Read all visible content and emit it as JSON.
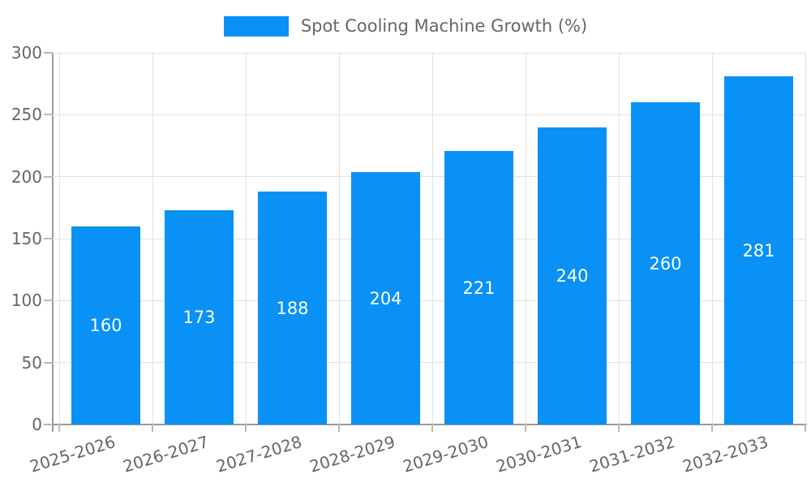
{
  "legend": {
    "label": "Spot Cooling Machine Growth (%)"
  },
  "chart_data": {
    "type": "bar",
    "title": "Spot Cooling Machine Growth (%)",
    "categories": [
      "2025-2026",
      "2026-2027",
      "2027-2028",
      "2028-2029",
      "2029-2030",
      "2030-2031",
      "2031-2032",
      "2032-2033"
    ],
    "values": [
      160,
      173,
      188,
      204,
      221,
      240,
      260,
      281
    ],
    "xlabel": "",
    "ylabel": "",
    "ylim": [
      0,
      300
    ],
    "yticks": [
      0,
      50,
      100,
      150,
      200,
      250,
      300
    ],
    "grid": true,
    "legend_position": "top-center",
    "bar_value_labels": "inside-center",
    "x_tick_rotation_deg": -17,
    "colors": {
      "bar": "#0991f5",
      "bar_label": "#ffffff",
      "tick_text": "#666666",
      "legend_text": "#666666",
      "axis_line": "#9a9a9a",
      "gridline": "#e2e2e2",
      "tick_mark": "#b9b9b9",
      "background": "#ffffff"
    }
  }
}
